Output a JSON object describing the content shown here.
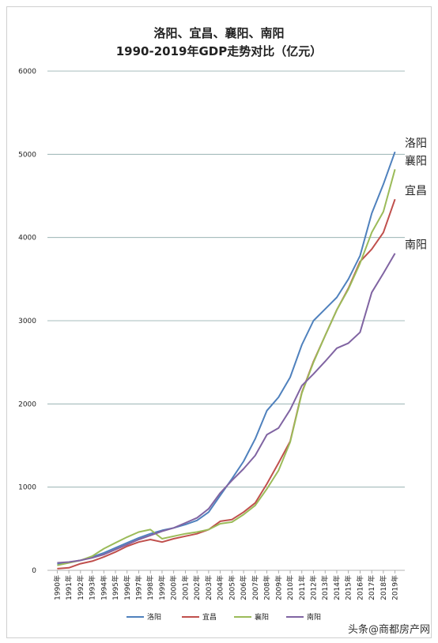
{
  "chart_data": {
    "type": "line",
    "title_line1": "洛阳、宜昌、襄阳、南阳",
    "title_line2": "1990-2019年GDP走势对比（亿元）",
    "ylim": [
      0,
      6000
    ],
    "yticks": [
      0,
      1000,
      2000,
      3000,
      4000,
      5000,
      6000
    ],
    "grid": true,
    "legend_position": "bottom",
    "categories": [
      "1990年",
      "1991年",
      "1992年",
      "1993年",
      "1994年",
      "1995年",
      "1996年",
      "1997年",
      "1998年",
      "1999年",
      "2000年",
      "2001年",
      "2002年",
      "2003年",
      "2004年",
      "2005年",
      "2006年",
      "2007年",
      "2008年",
      "2009年",
      "2010年",
      "2011年",
      "2012年",
      "2013年",
      "2014年",
      "2015年",
      "2016年",
      "2017年",
      "2018年",
      "2019年"
    ],
    "series": [
      {
        "name": "洛阳",
        "color": "#4f81bd",
        "end_label": "洛阳",
        "values": [
          80,
          95,
          120,
          160,
          210,
          270,
          330,
          390,
          440,
          480,
          510,
          550,
          600,
          700,
          900,
          1100,
          1310,
          1580,
          1920,
          2080,
          2320,
          2710,
          3000,
          3140,
          3280,
          3500,
          3780,
          4290,
          4640,
          5030
        ]
      },
      {
        "name": "宜昌",
        "color": "#c0504d",
        "end_label": "宜昌",
        "values": [
          20,
          30,
          80,
          110,
          160,
          220,
          290,
          340,
          370,
          340,
          380,
          410,
          440,
          490,
          590,
          610,
          700,
          810,
          1040,
          1290,
          1550,
          2140,
          2510,
          2820,
          3130,
          3390,
          3710,
          3860,
          4060,
          4460
        ]
      },
      {
        "name": "襄阳",
        "color": "#9bbb59",
        "end_label": "襄阳",
        "values": [
          60,
          90,
          120,
          170,
          260,
          330,
          400,
          460,
          490,
          380,
          410,
          440,
          460,
          490,
          560,
          580,
          670,
          780,
          980,
          1200,
          1540,
          2130,
          2500,
          2820,
          3130,
          3380,
          3690,
          4060,
          4310,
          4820
        ]
      },
      {
        "name": "南阳",
        "color": "#8064a2",
        "end_label": "南阳",
        "values": [
          90,
          100,
          120,
          150,
          190,
          250,
          310,
          370,
          420,
          470,
          510,
          570,
          630,
          740,
          930,
          1080,
          1220,
          1380,
          1630,
          1710,
          1930,
          2220,
          2360,
          2510,
          2670,
          2730,
          2860,
          3340,
          3570,
          3810
        ]
      }
    ]
  },
  "watermark": "头条@商都房产网"
}
